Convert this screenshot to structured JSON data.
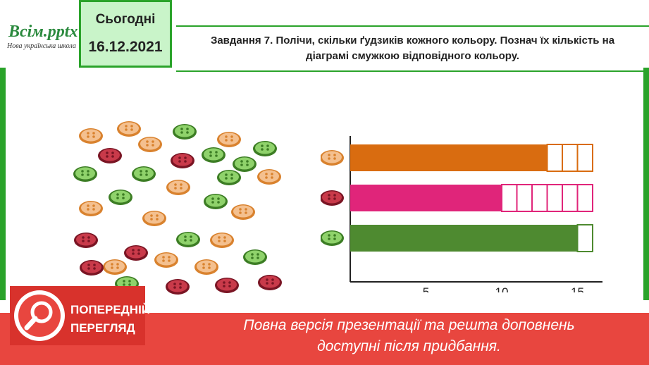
{
  "logo": {
    "main": "Всім.pptx",
    "sub": "Нова українська школа"
  },
  "date": {
    "label": "Сьогодні",
    "value": "16.12.2021"
  },
  "task": {
    "line1": "Завдання 7. Полічи, скільки ґудзиків кожного кольору. Познач їх кількість на",
    "line2": "діаграмі смужкою відповідного кольору."
  },
  "colors": {
    "orange": "#d96c10",
    "pink": "#e0257a",
    "green": "#4e8a30",
    "accent": "#2aa32a",
    "banner": "#e8463f"
  },
  "chart_data": {
    "type": "bar",
    "orientation": "horizontal",
    "categories": [
      "orange buttons",
      "red buttons",
      "green buttons"
    ],
    "values": [
      13,
      10,
      15
    ],
    "outline_max": 16,
    "xticks": [
      "5",
      "10",
      "15"
    ],
    "xlim": [
      0,
      17
    ]
  },
  "banner": {
    "line1": "Повна версія презентації та решта доповнень",
    "line2": "доступні після придбання."
  },
  "preview": {
    "line1": "ПОПЕРЕДНІЙ",
    "line2": "ПЕРЕГЛЯД",
    "icon": "magnifier-icon"
  }
}
